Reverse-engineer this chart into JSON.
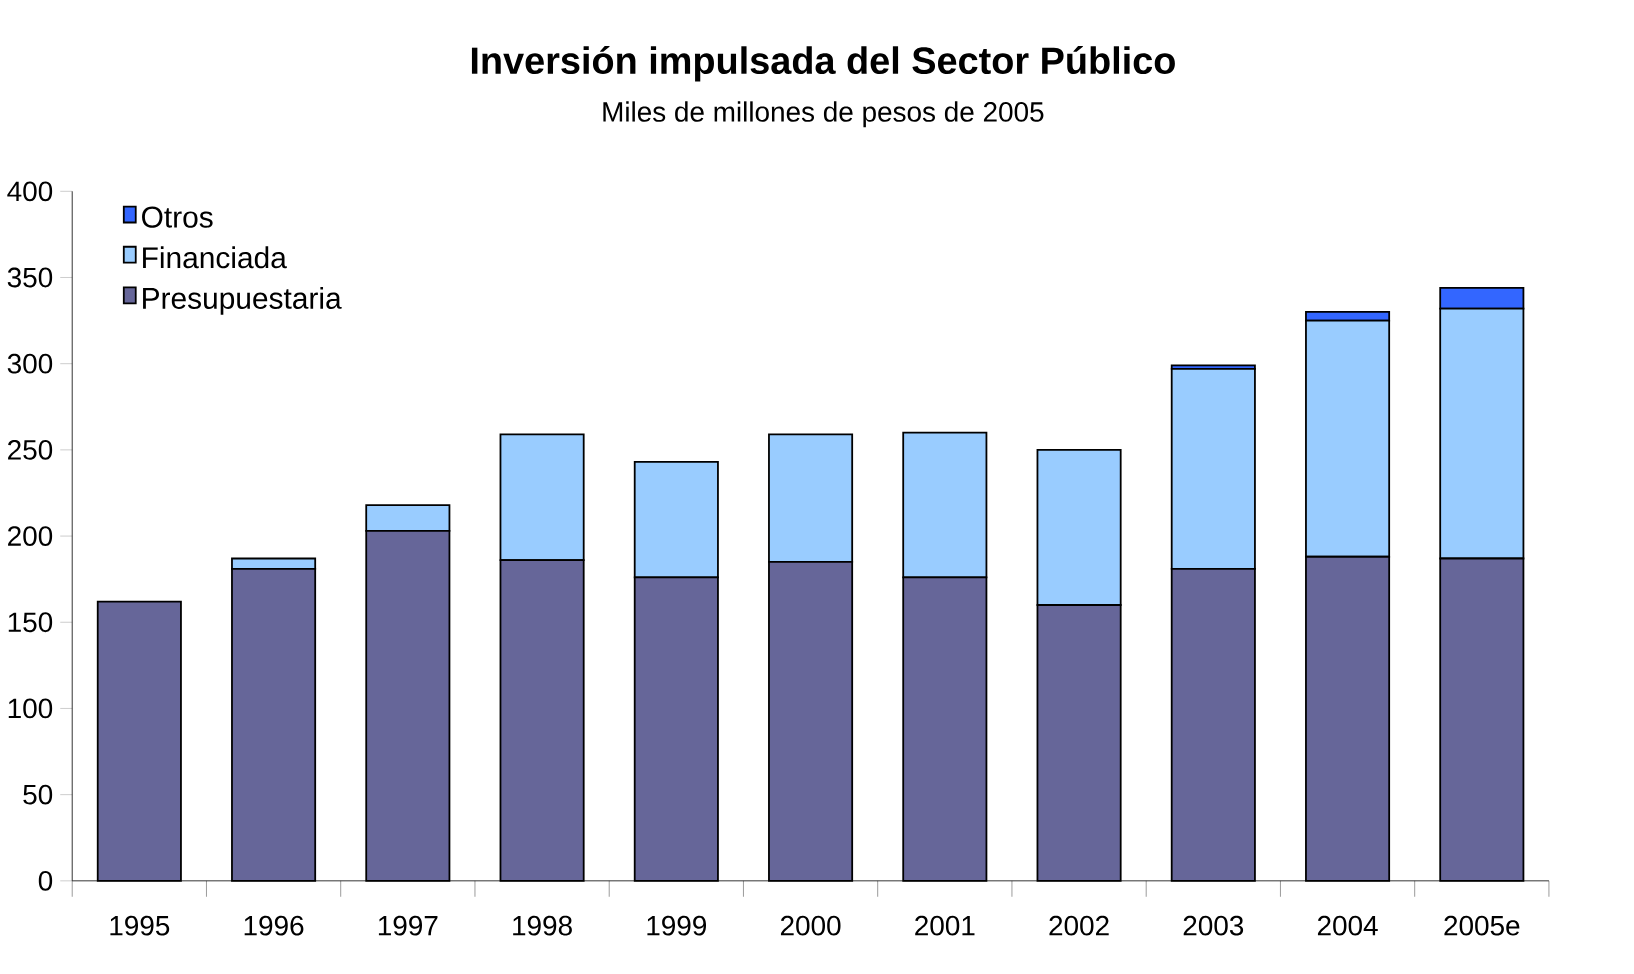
{
  "chart_data": {
    "type": "bar",
    "stacked": true,
    "title": "Inversión impulsada del Sector Público",
    "subtitle": "Miles de millones de pesos de 2005",
    "categories": [
      "1995",
      "1996",
      "1997",
      "1998",
      "1999",
      "2000",
      "2001",
      "2002",
      "2003",
      "2004",
      "2005e"
    ],
    "series": [
      {
        "name": "Presupuestaria",
        "color": "#666699",
        "values": [
          162,
          181,
          203,
          186,
          176,
          185,
          176,
          160,
          181,
          188,
          187
        ]
      },
      {
        "name": "Financiada",
        "color": "#99ccff",
        "values": [
          0,
          6,
          15,
          73,
          67,
          74,
          84,
          90,
          116,
          137,
          145
        ]
      },
      {
        "name": "Otros",
        "color": "#3366ff",
        "values": [
          0,
          0,
          0,
          0,
          0,
          0,
          0,
          0,
          2,
          5,
          12
        ]
      }
    ],
    "ylim": [
      0,
      400
    ],
    "yticks": [
      0,
      50,
      100,
      150,
      200,
      250,
      300,
      350,
      400
    ],
    "legend": "top left",
    "grid": false
  }
}
